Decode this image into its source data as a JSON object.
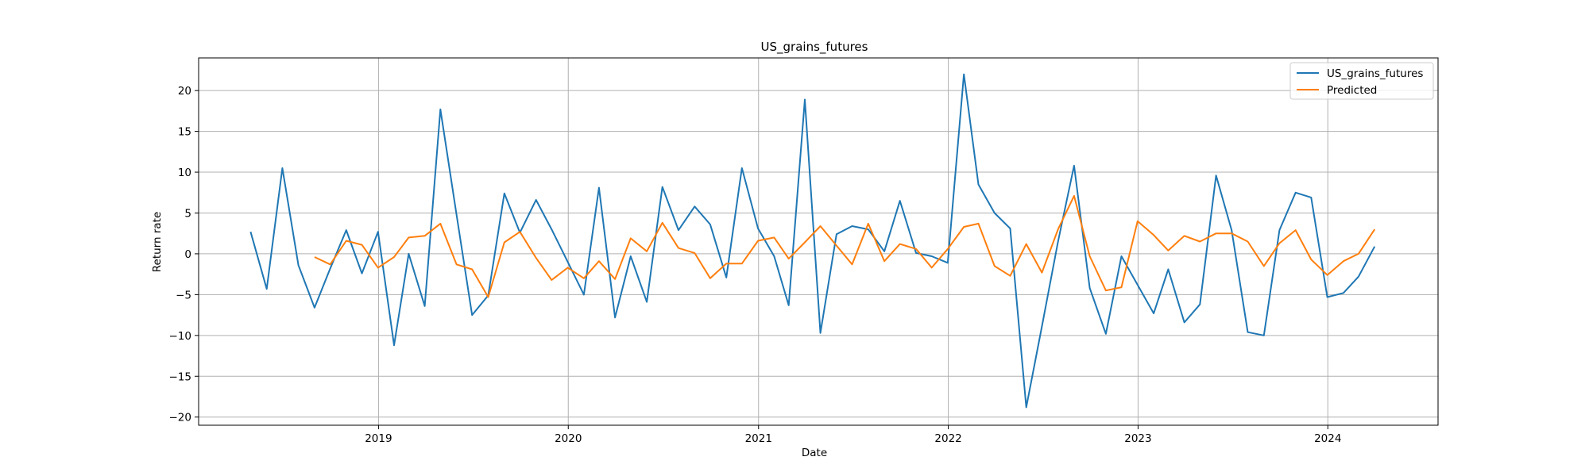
{
  "chart_data": {
    "type": "line",
    "title": "US_grains_futures",
    "xlabel": "Date",
    "ylabel": "Return rate",
    "ylim": [
      -21,
      24
    ],
    "xlim": [
      "2018-01-20",
      "2024-07-31"
    ],
    "yticks": [
      -20,
      -15,
      -10,
      -5,
      0,
      5,
      10,
      15,
      20
    ],
    "xticks": [
      "2019-01-01",
      "2020-01-01",
      "2021-01-01",
      "2022-01-01",
      "2023-01-01",
      "2024-01-01"
    ],
    "xtick_labels": [
      "2019",
      "2020",
      "2021",
      "2022",
      "2023",
      "2024"
    ],
    "grid": true,
    "legend_position": "top-right",
    "series": [
      {
        "name": "US_grains_futures",
        "color": "#1f77b4",
        "x": [
          "2018-04-30",
          "2018-05-31",
          "2018-06-30",
          "2018-07-31",
          "2018-08-31",
          "2018-09-30",
          "2018-10-31",
          "2018-11-30",
          "2018-12-31",
          "2019-01-31",
          "2019-02-28",
          "2019-03-31",
          "2019-04-30",
          "2019-05-31",
          "2019-06-30",
          "2019-07-31",
          "2019-08-31",
          "2019-09-30",
          "2019-10-31",
          "2019-11-30",
          "2019-12-31",
          "2020-01-31",
          "2020-02-29",
          "2020-03-31",
          "2020-04-30",
          "2020-05-31",
          "2020-06-30",
          "2020-07-31",
          "2020-08-31",
          "2020-09-30",
          "2020-10-31",
          "2020-11-30",
          "2020-12-31",
          "2021-01-31",
          "2021-02-28",
          "2021-03-31",
          "2021-04-30",
          "2021-05-31",
          "2021-06-30",
          "2021-07-31",
          "2021-08-31",
          "2021-09-30",
          "2021-10-31",
          "2021-11-30",
          "2021-12-31",
          "2022-01-31",
          "2022-02-28",
          "2022-03-31",
          "2022-04-30",
          "2022-05-31",
          "2022-06-30",
          "2022-07-31",
          "2022-08-31",
          "2022-09-30",
          "2022-10-31",
          "2022-11-30",
          "2022-12-31",
          "2023-01-31",
          "2023-02-28",
          "2023-03-31",
          "2023-04-30",
          "2023-05-31",
          "2023-06-30",
          "2023-07-31",
          "2023-08-31",
          "2023-09-30",
          "2023-10-31",
          "2023-11-30",
          "2023-12-31",
          "2024-01-31",
          "2024-02-29",
          "2024-03-31"
        ],
        "values": [
          2.7,
          -4.3,
          10.5,
          -1.4,
          -6.6,
          -1.8,
          2.9,
          -2.4,
          2.7,
          -11.2,
          0.0,
          -6.4,
          17.7,
          4.8,
          -7.5,
          -5.1,
          7.4,
          2.6,
          6.6,
          3.0,
          -1.0,
          -5.0,
          8.1,
          -7.8,
          -0.3,
          -5.9,
          8.2,
          2.9,
          5.8,
          3.6,
          -2.9,
          10.5,
          3.1,
          -0.3,
          -6.3,
          18.9,
          -9.7,
          2.4,
          3.4,
          3.0,
          0.3,
          6.5,
          0.1,
          -0.3,
          -1.1,
          22.0,
          8.5,
          5.0,
          3.1,
          -18.8,
          -8.9,
          1.5,
          10.8,
          -4.2,
          -9.8,
          -0.3,
          -3.8,
          -7.3,
          -1.9,
          -8.4,
          -6.2,
          9.6,
          2.9,
          -9.6,
          -10.0,
          2.9,
          7.5,
          6.9,
          -5.3,
          -4.8,
          -2.8,
          0.9
        ]
      },
      {
        "name": "Predicted",
        "color": "#ff7f0e",
        "x": [
          "2018-08-31",
          "2018-09-30",
          "2018-10-31",
          "2018-11-30",
          "2018-12-31",
          "2019-01-31",
          "2019-02-28",
          "2019-03-31",
          "2019-04-30",
          "2019-05-31",
          "2019-06-30",
          "2019-07-31",
          "2019-08-31",
          "2019-09-30",
          "2019-10-31",
          "2019-11-30",
          "2019-12-31",
          "2020-01-31",
          "2020-02-29",
          "2020-03-31",
          "2020-04-30",
          "2020-05-31",
          "2020-06-30",
          "2020-07-31",
          "2020-08-31",
          "2020-09-30",
          "2020-10-31",
          "2020-11-30",
          "2020-12-31",
          "2021-01-31",
          "2021-02-28",
          "2021-03-31",
          "2021-04-30",
          "2021-05-31",
          "2021-06-30",
          "2021-07-31",
          "2021-08-31",
          "2021-09-30",
          "2021-10-31",
          "2021-11-30",
          "2021-12-31",
          "2022-01-31",
          "2022-02-28",
          "2022-03-31",
          "2022-04-30",
          "2022-05-31",
          "2022-06-30",
          "2022-07-31",
          "2022-08-31",
          "2022-09-30",
          "2022-10-31",
          "2022-11-30",
          "2022-12-31",
          "2023-01-31",
          "2023-02-28",
          "2023-03-31",
          "2023-04-30",
          "2023-05-31",
          "2023-06-30",
          "2023-07-31",
          "2023-08-31",
          "2023-09-30",
          "2023-10-31",
          "2023-11-30",
          "2023-12-31",
          "2024-01-31",
          "2024-02-29",
          "2024-03-31"
        ],
        "values": [
          -0.4,
          -1.3,
          1.6,
          1.1,
          -1.7,
          -0.4,
          2.0,
          2.2,
          3.7,
          -1.3,
          -1.9,
          -5.3,
          1.4,
          2.7,
          -0.5,
          -3.2,
          -1.7,
          -3.0,
          -0.9,
          -3.1,
          1.9,
          0.3,
          3.8,
          0.7,
          0.1,
          -3.0,
          -1.2,
          -1.2,
          1.6,
          2.0,
          -0.6,
          1.4,
          3.4,
          1.0,
          -1.3,
          3.7,
          -0.9,
          1.2,
          0.6,
          -1.7,
          0.6,
          3.3,
          3.7,
          -1.5,
          -2.7,
          1.2,
          -2.3,
          3.0,
          7.1,
          -0.3,
          -4.5,
          -4.1,
          4.0,
          2.3,
          0.4,
          2.2,
          1.5,
          2.5,
          2.5,
          1.5,
          -1.5,
          1.3,
          2.9,
          -0.7,
          -2.6,
          -0.9,
          0.0,
          3.0
        ]
      }
    ]
  }
}
